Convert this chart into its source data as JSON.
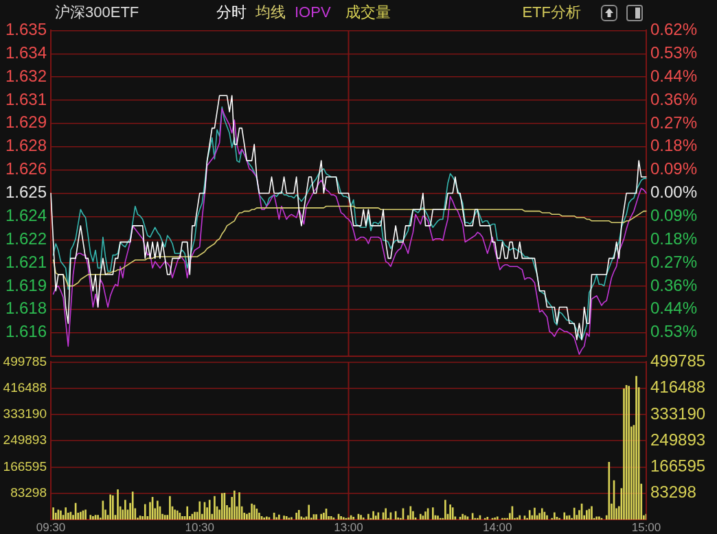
{
  "chart_data": [
    {
      "type": "line",
      "title": "沪深300ETF",
      "annotations": [
        "ETF分析"
      ],
      "legend": "top left",
      "tick_labels": "y",
      "grid": "y",
      "marker": "none",
      "categories": [
        "09:30",
        null,
        null,
        null,
        null,
        null,
        null,
        null,
        null,
        null,
        null,
        null,
        null,
        null,
        null,
        null,
        null,
        null,
        null,
        null,
        null,
        null,
        null,
        null,
        null,
        null,
        null,
        null,
        null,
        null,
        null,
        null,
        null,
        null,
        null,
        null,
        null,
        null,
        null,
        null,
        null,
        null,
        null,
        null,
        null,
        null,
        null,
        null,
        null,
        null,
        null,
        null,
        null,
        null,
        null,
        null,
        null,
        null,
        null,
        null,
        "10:30",
        null,
        null,
        null,
        null,
        null,
        null,
        null,
        null,
        null,
        null,
        null,
        null,
        null,
        null,
        null,
        null,
        null,
        null,
        null,
        null,
        null,
        null,
        null,
        null,
        null,
        null,
        null,
        null,
        null,
        null,
        null,
        null,
        null,
        null,
        null,
        null,
        null,
        null,
        null,
        null,
        null,
        null,
        null,
        null,
        null,
        null,
        null,
        null,
        null,
        null,
        null,
        null,
        null,
        null,
        null,
        null,
        null,
        null,
        null,
        "13:00",
        null,
        null,
        null,
        null,
        null,
        null,
        null,
        null,
        null,
        null,
        null,
        null,
        null,
        null,
        null,
        null,
        null,
        null,
        null,
        null,
        null,
        null,
        null,
        null,
        null,
        null,
        null,
        null,
        null,
        null,
        null,
        null,
        null,
        null,
        null,
        null,
        null,
        null,
        null,
        null,
        null,
        null,
        null,
        null,
        null,
        null,
        null,
        null,
        null,
        null,
        null,
        null,
        null,
        null,
        null,
        null,
        null,
        null,
        null,
        "14:00",
        null,
        null,
        null,
        null,
        null,
        null,
        null,
        null,
        null,
        null,
        null,
        null,
        null,
        null,
        null,
        null,
        null,
        null,
        null,
        null,
        null,
        null,
        null,
        null,
        null,
        null,
        null,
        null,
        null,
        null,
        null,
        null,
        null,
        null,
        null,
        null,
        null,
        null,
        null,
        null,
        null,
        null,
        null,
        null,
        null,
        null,
        null,
        null,
        null,
        null,
        null,
        null,
        null,
        null,
        null,
        null,
        null,
        null,
        null,
        "15:00"
      ],
      "ylim": [
        1.615,
        1.635
      ],
      "yticks": [
        1.635,
        {
          "value": 1.63357,
          "label": "1.634"
        },
        {
          "value": 1.63214,
          "label": "1.632"
        },
        {
          "value": 1.63071,
          "label": "1.631"
        },
        {
          "value": 1.62929,
          "label": "1.629"
        },
        {
          "value": 1.62786,
          "label": "1.628"
        },
        {
          "value": 1.62643,
          "label": "1.626"
        },
        1.625,
        {
          "value": 1.62357,
          "label": "1.624"
        },
        {
          "value": 1.62214,
          "label": "1.622"
        },
        {
          "value": 1.62071,
          "label": "1.621"
        },
        {
          "value": 1.61929,
          "label": "1.619"
        },
        {
          "value": 1.61786,
          "label": "1.618"
        },
        {
          "value": 1.61643,
          "label": "1.616"
        }
      ],
      "y2lim": [
        -0.6216,
        0.6216
      ],
      "y2ticks": [
        {
          "value": 0.6216,
          "label": "0.62%"
        },
        {
          "value": 0.5328,
          "label": "0.53%"
        },
        {
          "value": 0.444,
          "label": "0.44%"
        },
        {
          "value": 0.3552,
          "label": "0.36%"
        },
        {
          "value": 0.2664,
          "label": "0.27%"
        },
        {
          "value": 0.1776,
          "label": "0.18%"
        },
        {
          "value": 0.0888,
          "label": "0.09%"
        },
        {
          "value": 0,
          "label": "0.00%"
        },
        {
          "value": -0.0888,
          "label": "0.09%"
        },
        {
          "value": -0.1776,
          "label": "0.18%"
        },
        {
          "value": -0.2664,
          "label": "0.27%"
        },
        {
          "value": -0.3552,
          "label": "0.36%"
        },
        {
          "value": -0.444,
          "label": "0.44%"
        },
        {
          "value": -0.5328,
          "label": "0.53%"
        }
      ],
      "ref_lines": [
        {
          "axis": "x",
          "value": "13:00",
          "color": "#7d1414"
        }
      ],
      "series": [
        {
          "name": "分时",
          "color": "#ffffff",
          "values": [
            1.625,
            1.622,
            1.619,
            1.62,
            1.62,
            1.62,
            1.618,
            1.617,
            1.621,
            1.621,
            1.621,
            1.622,
            1.623,
            1.622,
            1.621,
            1.621,
            1.62,
            1.619,
            1.62,
            1.618,
            1.62,
            1.621,
            1.62,
            1.62,
            1.62,
            1.62,
            1.621,
            1.621,
            1.622,
            1.622,
            1.622,
            1.622,
            1.622,
            1.623,
            1.623,
            1.623,
            1.623,
            1.623,
            1.621,
            1.622,
            1.621,
            1.622,
            1.621,
            1.622,
            1.621,
            1.622,
            1.621,
            1.62,
            1.62,
            1.621,
            1.621,
            1.621,
            1.621,
            1.622,
            1.622,
            1.622,
            1.62,
            1.623,
            1.623,
            1.624,
            1.625,
            1.625,
            1.625,
            1.627,
            1.628,
            1.629,
            1.629,
            1.63,
            1.631,
            1.631,
            1.631,
            1.631,
            1.63,
            1.631,
            1.628,
            1.628,
            1.629,
            1.629,
            1.628,
            1.627,
            1.627,
            1.627,
            1.628,
            1.626,
            1.625,
            1.625,
            1.625,
            1.625,
            1.625,
            1.626,
            1.625,
            1.625,
            1.625,
            1.625,
            1.626,
            1.625,
            1.625,
            1.625,
            1.625,
            1.626,
            1.624,
            1.623,
            1.624,
            1.625,
            1.626,
            1.626,
            1.625,
            1.625,
            1.626,
            1.627,
            1.625,
            1.626,
            1.626,
            1.626,
            1.626,
            1.626,
            1.625,
            1.625,
            1.625,
            1.625,
            1.625,
            1.624,
            1.623,
            1.623,
            1.623,
            1.623,
            1.624,
            1.623,
            1.624,
            1.623,
            1.623,
            1.623,
            1.623,
            1.623,
            1.624,
            1.622,
            1.621,
            1.621,
            1.622,
            1.623,
            1.622,
            1.622,
            1.622,
            1.623,
            1.623,
            1.623,
            1.624,
            1.624,
            1.624,
            1.624,
            1.625,
            1.623,
            1.623,
            1.623,
            1.624,
            1.624,
            1.624,
            1.624,
            1.624,
            1.624,
            1.625,
            1.625,
            1.625,
            1.626,
            1.625,
            1.625,
            1.624,
            1.623,
            1.623,
            1.623,
            1.623,
            1.624,
            1.624,
            1.623,
            1.623,
            1.623,
            1.623,
            1.623,
            1.622,
            1.622,
            1.621,
            1.621,
            1.622,
            1.621,
            1.621,
            1.622,
            1.622,
            1.621,
            1.621,
            1.622,
            1.621,
            1.621,
            1.621,
            1.621,
            1.621,
            1.621,
            1.62,
            1.619,
            1.619,
            1.619,
            1.618,
            1.618,
            1.618,
            1.618,
            1.617,
            1.618,
            1.618,
            1.618,
            1.618,
            1.617,
            1.617,
            1.617,
            1.616,
            1.617,
            1.616,
            1.618,
            1.617,
            1.617,
            1.62,
            1.62,
            1.62,
            1.62,
            1.62,
            1.62,
            1.62,
            1.621,
            1.621,
            1.621,
            1.622,
            1.621,
            1.623,
            1.624,
            1.625,
            1.625,
            1.625,
            1.625,
            1.625,
            1.627,
            1.626,
            1.626,
            1.626
          ]
        },
        {
          "name": "均线",
          "color": "#d9cf6e",
          "values": [
            null,
            1.6209,
            1.6201,
            1.62,
            1.62,
            1.62,
            1.6197,
            1.6193,
            1.6193,
            1.6193,
            1.6194,
            1.6195,
            1.6197,
            1.6198,
            1.6199,
            1.62,
            1.62,
            1.62,
            1.62,
            1.62,
            1.62,
            1.62,
            1.62,
            1.6201,
            1.6201,
            1.6202,
            1.6202,
            1.6203,
            1.6203,
            1.6204,
            1.6205,
            1.6206,
            1.6207,
            1.6208,
            1.6209,
            1.6209,
            1.6209,
            1.6209,
            1.6209,
            1.621,
            1.621,
            1.621,
            1.6211,
            1.6211,
            1.6211,
            1.6211,
            1.6211,
            1.6211,
            1.6211,
            1.6211,
            1.6211,
            1.6211,
            1.6211,
            1.6211,
            1.6211,
            1.6211,
            1.6211,
            1.6211,
            1.6211,
            1.6211,
            1.6212,
            1.6213,
            1.6214,
            1.6216,
            1.6217,
            1.6218,
            1.6219,
            1.6221,
            1.6222,
            1.6225,
            1.6227,
            1.623,
            1.6231,
            1.6232,
            1.6233,
            1.6236,
            1.6238,
            1.6238,
            1.6239,
            1.6239,
            1.6239,
            1.624,
            1.624,
            1.6241,
            1.6241,
            1.6241,
            1.6241,
            1.6241,
            1.6241,
            1.6241,
            1.6241,
            1.6241,
            1.6241,
            1.6241,
            1.6241,
            1.6241,
            1.6241,
            1.6241,
            1.6241,
            1.6241,
            1.6241,
            1.6241,
            1.6241,
            1.6241,
            1.6241,
            1.6241,
            1.6241,
            1.6241,
            1.6241,
            1.6241,
            1.6241,
            1.6242,
            1.6242,
            1.6242,
            1.6242,
            1.6242,
            1.6242,
            1.6242,
            1.6242,
            1.6242,
            1.6242,
            1.6242,
            1.6242,
            1.6241,
            1.6241,
            1.6241,
            1.6241,
            1.6241,
            1.6241,
            1.6241,
            1.6241,
            1.6241,
            1.6241,
            1.624,
            1.624,
            1.624,
            1.624,
            1.624,
            1.624,
            1.624,
            1.624,
            1.624,
            1.624,
            1.624,
            1.624,
            1.624,
            1.624,
            1.624,
            1.624,
            1.624,
            1.624,
            1.624,
            1.624,
            1.624,
            1.624,
            1.624,
            1.624,
            1.624,
            1.624,
            1.624,
            1.624,
            1.624,
            1.624,
            1.624,
            1.624,
            1.624,
            1.624,
            1.624,
            1.624,
            1.624,
            1.624,
            1.624,
            1.624,
            1.624,
            1.624,
            1.624,
            1.624,
            1.624,
            1.624,
            1.624,
            1.624,
            1.624,
            1.624,
            1.624,
            1.624,
            1.624,
            1.624,
            1.624,
            1.624,
            1.624,
            1.624,
            1.6239,
            1.6239,
            1.6239,
            1.6239,
            1.6239,
            1.6239,
            1.6239,
            1.6238,
            1.6238,
            1.6238,
            1.6238,
            1.6237,
            1.6237,
            1.6237,
            1.6237,
            1.6236,
            1.6236,
            1.6236,
            1.6236,
            1.6236,
            1.6236,
            1.6235,
            1.6235,
            1.6235,
            1.6235,
            1.6234,
            1.6234,
            1.6233,
            1.6233,
            1.6233,
            1.6233,
            1.6233,
            1.6233,
            1.6233,
            1.6233,
            1.6232,
            1.6232,
            1.6232,
            1.6232,
            1.6232,
            1.6232,
            1.6233,
            1.6233,
            1.6234,
            1.6235,
            1.6236,
            1.6237,
            1.6238,
            1.6239,
            1.6239
          ]
        },
        {
          "name": "IOPV",
          "color": "#c236d6",
          "values": [
            null,
            1.6188,
            1.6192,
            1.6193,
            1.619,
            1.6186,
            1.6171,
            1.6156,
            1.6178,
            1.62,
            1.6211,
            1.6213,
            1.6213,
            1.6212,
            1.6212,
            1.6205,
            1.6193,
            1.618,
            1.6188,
            1.618,
            1.6197,
            1.6194,
            1.6187,
            1.618,
            1.6187,
            1.6191,
            1.6194,
            1.6193,
            1.6205,
            1.6198,
            1.6208,
            1.6214,
            1.622,
            1.623,
            1.6228,
            1.6226,
            1.6224,
            1.6222,
            1.6217,
            1.6212,
            1.6213,
            1.6204,
            1.6208,
            1.6206,
            1.6204,
            1.6206,
            1.6208,
            1.6207,
            1.6205,
            1.6198,
            1.6203,
            1.6208,
            1.6212,
            1.621,
            1.6208,
            1.6198,
            1.6208,
            1.6212,
            1.6215,
            1.6216,
            1.6217,
            1.6235,
            1.6249,
            1.6267,
            1.6269,
            1.6271,
            1.6273,
            1.6277,
            1.6281,
            1.6302,
            1.6298,
            1.6295,
            1.6292,
            1.6287,
            1.6295,
            1.628,
            1.6274,
            1.6277,
            1.6274,
            1.627,
            1.6265,
            1.6264,
            1.6262,
            1.626,
            1.625,
            1.624,
            1.624,
            1.6242,
            1.6244,
            1.6247,
            1.6249,
            1.6242,
            1.6234,
            1.6242,
            1.6238,
            1.6234,
            1.6236,
            1.6237,
            1.6236,
            1.6235,
            1.624,
            1.6236,
            1.6231,
            1.6242,
            1.6245,
            1.6248,
            1.6251,
            1.6253,
            1.6256,
            1.6258,
            1.6255,
            1.6252,
            1.6251,
            1.6249,
            1.6249,
            1.6248,
            1.6243,
            1.6238,
            1.6237,
            1.6235,
            1.6234,
            1.6232,
            1.6227,
            1.6221,
            1.6222,
            1.6223,
            1.6223,
            1.6222,
            1.6219,
            1.6223,
            1.6223,
            1.6223,
            1.6223,
            1.6222,
            1.6215,
            1.6208,
            1.6207,
            1.6205,
            1.6209,
            1.6213,
            1.6215,
            1.6216,
            1.622,
            1.6217,
            1.6213,
            1.622,
            1.6226,
            1.6237,
            1.6234,
            1.6231,
            1.6236,
            1.6235,
            1.6233,
            1.6227,
            1.6221,
            1.6222,
            1.6222,
            1.6222,
            1.6221,
            1.6228,
            1.6234,
            1.6248,
            1.6245,
            1.6241,
            1.6239,
            1.6235,
            1.6231,
            1.622,
            1.6221,
            1.6222,
            1.6223,
            1.6224,
            1.6226,
            1.6225,
            1.6223,
            1.6218,
            1.6213,
            1.6218,
            1.6223,
            1.6215,
            1.6209,
            1.6203,
            1.6205,
            1.6206,
            1.6206,
            1.6205,
            1.6205,
            1.6205,
            1.6205,
            1.6204,
            1.6203,
            1.6197,
            1.6198,
            1.6198,
            1.6197,
            1.6195,
            1.6186,
            1.6177,
            1.6178,
            1.6176,
            1.6174,
            1.6165,
            1.6164,
            1.6162,
            1.6165,
            1.6167,
            1.6166,
            1.6165,
            1.6165,
            1.6164,
            1.6163,
            1.6161,
            1.6156,
            1.6151,
            1.6154,
            1.6156,
            1.6164,
            1.6162,
            1.6185,
            1.6186,
            1.6187,
            1.6184,
            1.6181,
            1.6183,
            1.6184,
            1.6191,
            1.6198,
            1.6202,
            1.6205,
            1.6214,
            1.6218,
            1.6222,
            1.6228,
            1.6233,
            1.6236,
            1.6239,
            1.6244,
            1.6249,
            1.6253,
            1.6252,
            1.625
          ]
        },
        {
          "color": "#35b7b0",
          "values": [
            null,
            1.6212,
            1.6219,
            1.6215,
            1.6208,
            1.6206,
            1.6204,
            1.6191,
            1.6215,
            1.6218,
            1.6222,
            1.6231,
            1.624,
            1.6237,
            1.6235,
            1.6224,
            1.6213,
            1.6208,
            1.6215,
            1.6204,
            1.6204,
            1.6223,
            1.6211,
            1.6202,
            1.6202,
            1.6212,
            1.6212,
            1.6213,
            1.622,
            1.6218,
            1.6217,
            1.622,
            1.6222,
            1.6232,
            1.6242,
            1.6237,
            1.6236,
            1.6234,
            1.6229,
            1.6224,
            1.6223,
            1.6226,
            1.6229,
            1.6226,
            1.6224,
            1.622,
            1.6217,
            1.6224,
            1.6222,
            1.6219,
            1.6213,
            1.6213,
            1.6213,
            1.6215,
            1.6213,
            1.6204,
            1.6211,
            1.6216,
            1.6222,
            1.6235,
            1.624,
            1.6244,
            1.6256,
            1.627,
            1.6277,
            1.6284,
            1.6271,
            1.6289,
            1.6285,
            1.6303,
            1.6295,
            1.6291,
            1.6287,
            1.6278,
            1.6284,
            1.627,
            1.6269,
            1.6277,
            1.6274,
            1.627,
            1.6268,
            1.6266,
            1.6263,
            1.6259,
            1.6249,
            1.6247,
            1.6245,
            1.6242,
            1.6247,
            1.6248,
            1.6249,
            1.6248,
            1.625,
            1.6251,
            1.6249,
            1.6249,
            1.6248,
            1.6248,
            1.6247,
            1.6249,
            1.6247,
            1.6245,
            1.6247,
            1.6249,
            1.6252,
            1.6255,
            1.6257,
            1.6259,
            1.6262,
            1.6264,
            1.6265,
            1.6262,
            1.6261,
            1.626,
            1.626,
            1.626,
            1.6255,
            1.625,
            1.6248,
            1.6248,
            1.6247,
            1.6242,
            1.6246,
            1.6231,
            1.623,
            1.6229,
            1.6229,
            1.6229,
            1.6236,
            1.6227,
            1.6232,
            1.6232,
            1.6231,
            1.6233,
            1.6221,
            1.6221,
            1.622,
            1.6216,
            1.6219,
            1.6221,
            1.6221,
            1.6221,
            1.6221,
            1.6224,
            1.6227,
            1.6234,
            1.624,
            1.6239,
            1.6238,
            1.624,
            1.6241,
            1.6239,
            1.6236,
            1.6232,
            1.6229,
            1.6231,
            1.6233,
            1.6234,
            1.6234,
            1.6245,
            1.6256,
            1.6262,
            1.626,
            1.6257,
            1.6252,
            1.6248,
            1.6244,
            1.6232,
            1.6232,
            1.6231,
            1.6233,
            1.6237,
            1.624,
            1.6236,
            1.6232,
            1.6233,
            1.6233,
            1.623,
            1.6231,
            1.6231,
            1.6221,
            1.6221,
            1.6221,
            1.6218,
            1.6217,
            1.6215,
            1.6216,
            1.6216,
            1.6215,
            1.6214,
            1.6213,
            1.6211,
            1.6211,
            1.621,
            1.621,
            1.6205,
            1.62,
            1.619,
            1.6189,
            1.6188,
            1.6184,
            1.6182,
            1.618,
            1.6171,
            1.6169,
            1.6177,
            1.6176,
            1.6174,
            1.6172,
            1.6172,
            1.6171,
            1.6169,
            1.6166,
            1.6162,
            1.616,
            1.6164,
            1.6169,
            1.6189,
            1.6192,
            1.6195,
            1.62,
            1.6194,
            1.6194,
            1.6193,
            1.62,
            1.6204,
            1.6208,
            1.6212,
            1.6216,
            1.622,
            1.6229,
            1.6233,
            1.6237,
            1.6244,
            1.6246,
            1.6247,
            1.6252,
            1.6255,
            1.6258,
            1.6259,
            1.6259
          ]
        }
      ]
    },
    {
      "type": "bar",
      "legend": "top left",
      "grid": "y",
      "categories": [
        "09:30",
        null,
        null,
        null,
        null,
        null,
        null,
        null,
        null,
        null,
        null,
        null,
        null,
        null,
        null,
        null,
        null,
        null,
        null,
        null,
        null,
        null,
        null,
        null,
        null,
        null,
        null,
        null,
        null,
        null,
        null,
        null,
        null,
        null,
        null,
        null,
        null,
        null,
        null,
        null,
        null,
        null,
        null,
        null,
        null,
        null,
        null,
        null,
        null,
        null,
        null,
        null,
        null,
        null,
        null,
        null,
        null,
        null,
        null,
        null,
        "10:30",
        null,
        null,
        null,
        null,
        null,
        null,
        null,
        null,
        null,
        null,
        null,
        null,
        null,
        null,
        null,
        null,
        null,
        null,
        null,
        null,
        null,
        null,
        null,
        null,
        null,
        null,
        null,
        null,
        null,
        null,
        null,
        null,
        null,
        null,
        null,
        null,
        null,
        null,
        null,
        null,
        null,
        null,
        null,
        null,
        null,
        null,
        null,
        null,
        null,
        null,
        null,
        null,
        null,
        null,
        null,
        null,
        null,
        null,
        null,
        "13:00",
        null,
        null,
        null,
        null,
        null,
        null,
        null,
        null,
        null,
        null,
        null,
        null,
        null,
        null,
        null,
        null,
        null,
        null,
        null,
        null,
        null,
        null,
        null,
        null,
        null,
        null,
        null,
        null,
        null,
        null,
        null,
        null,
        null,
        null,
        null,
        null,
        null,
        null,
        null,
        null,
        null,
        null,
        null,
        null,
        null,
        null,
        null,
        null,
        null,
        null,
        null,
        null,
        null,
        null,
        null,
        null,
        null,
        null,
        null,
        "14:00",
        null,
        null,
        null,
        null,
        null,
        null,
        null,
        null,
        null,
        null,
        null,
        null,
        null,
        null,
        null,
        null,
        null,
        null,
        null,
        null,
        null,
        null,
        null,
        null,
        null,
        null,
        null,
        null,
        null,
        null,
        null,
        null,
        null,
        null,
        null,
        null,
        null,
        null,
        null,
        null,
        null,
        null,
        null,
        null,
        null,
        null,
        null,
        null,
        null,
        null,
        null,
        null,
        null,
        null,
        null,
        null,
        null,
        null,
        null,
        "15:00"
      ],
      "ylim": [
        0,
        499785
      ],
      "yticks": [
        83298,
        166595,
        249893,
        333190,
        416488,
        499785
      ],
      "y2lim": [
        0,
        499785
      ],
      "y2ticks": [
        83298,
        166595,
        249893,
        333190,
        416488,
        499785
      ],
      "ref_lines": [
        {
          "axis": "x",
          "value": "13:00",
          "color": "#7d1414"
        }
      ],
      "series": [
        {
          "name": "成交量",
          "color": "#d8d255",
          "values": [
            null,
            38000,
            21000,
            31000,
            28000,
            14000,
            38000,
            21000,
            24000,
            14000,
            52000,
            21000,
            24000,
            28000,
            31000,
            null,
            14000,
            10000,
            14000,
            14000,
            5000,
            59000,
            31000,
            14000,
            79000,
            76000,
            14000,
            95000,
            41000,
            31000,
            62000,
            31000,
            52000,
            88000,
            35000,
            5000,
            12000,
            10000,
            48000,
            10000,
            55000,
            71000,
            35000,
            59000,
            41000,
            17000,
            14000,
            14000,
            74000,
            41000,
            31000,
            28000,
            21000,
            10000,
            10000,
            41000,
            10000,
            17000,
            24000,
            24000,
            57000,
            17000,
            55000,
            38000,
            62000,
            17000,
            74000,
            41000,
            31000,
            83000,
            84000,
            45000,
            38000,
            71000,
            91000,
            41000,
            86000,
            41000,
            21000,
            17000,
            21000,
            50000,
            46000,
            34000,
            21000,
            10000,
            6000,
            9000,
            7000,
            null,
            21000,
            7000,
            15000,
            null,
            12000,
            10000,
            5000,
            7000,
            null,
            21000,
            30000,
            9000,
            5000,
            9000,
            46000,
            5000,
            16000,
            16000,
            null,
            17000,
            21000,
            34000,
            10000,
            10000,
            6000,
            null,
            17000,
            10000,
            7000,
            4000,
            6000,
            13000,
            8000,
            null,
            17000,
            14000,
            6000,
            null,
            17000,
            4000,
            26000,
            12000,
            22000,
            null,
            22000,
            35000,
            4000,
            22000,
            null,
            26000,
            6000,
            4000,
            35000,
            null,
            13000,
            42000,
            26000,
            6000,
            null,
            17000,
            12000,
            25000,
            35000,
            null,
            38000,
            13000,
            12000,
            4000,
            4000,
            62000,
            17000,
            47000,
            38000,
            9000,
            null,
            8000,
            17000,
            13000,
            9000,
            null,
            20000,
            4000,
            4000,
            13000,
            null,
            4000,
            8000,
            null,
            4000,
            6000,
            9000,
            null,
            4000,
            4000,
            4000,
            20000,
            42000,
            4000,
            6000,
            13000,
            null,
            12000,
            4000,
            29000,
            13000,
            37000,
            13000,
            20000,
            35000,
            24000,
            13000,
            null,
            4000,
            22000,
            8000,
            4000,
            null,
            22000,
            12000,
            13000,
            4000,
            37000,
            14000,
            29000,
            50000,
            13000,
            29000,
            33000,
            42000,
            4000,
            9000,
            9000,
            4000,
            null,
            13000,
            182000,
            50000,
            124000,
            35000,
            42000,
            99000,
            415000,
            426000,
            423000,
            294000,
            299000,
            455000,
            419000,
            113000,
            13000,
            17000
          ]
        }
      ]
    }
  ]
}
